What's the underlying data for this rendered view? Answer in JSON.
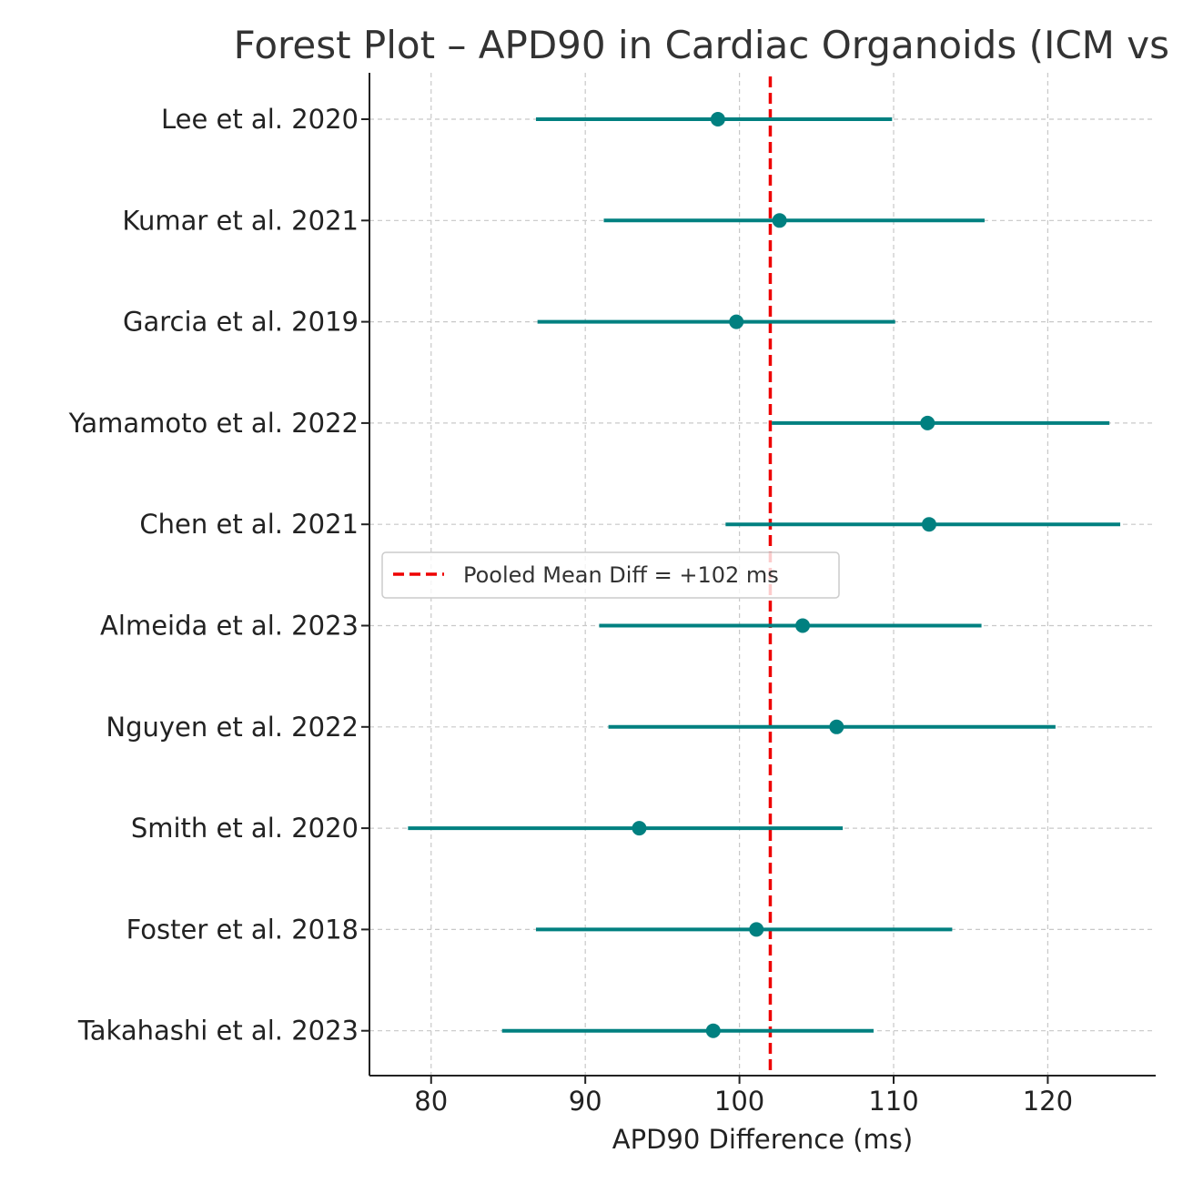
{
  "chart_data": {
    "type": "forest",
    "title": "Forest Plot – APD90 in Cardiac Organoids (ICM vs",
    "xlabel": "APD90 Difference (ms)",
    "ylabel": "",
    "xlim": [
      76,
      127
    ],
    "xticks": [
      80,
      90,
      100,
      110,
      120
    ],
    "grid": true,
    "legend_position": "center-left",
    "legend_label": "Pooled Mean Diff = +102 ms",
    "pooled_mean": 102,
    "studies": [
      {
        "name": "Lee et al. 2020",
        "mean": 98.6,
        "ci_low": 86.8,
        "ci_high": 109.9
      },
      {
        "name": "Kumar et al. 2021",
        "mean": 102.6,
        "ci_low": 91.2,
        "ci_high": 115.9
      },
      {
        "name": "Garcia et al. 2019",
        "mean": 99.8,
        "ci_low": 86.9,
        "ci_high": 110.1
      },
      {
        "name": "Yamamoto et al. 2022",
        "mean": 112.2,
        "ci_low": 102.1,
        "ci_high": 124.0
      },
      {
        "name": "Chen et al. 2021",
        "mean": 112.3,
        "ci_low": 99.1,
        "ci_high": 124.7
      },
      {
        "name": "Almeida et al. 2023",
        "mean": 104.1,
        "ci_low": 90.9,
        "ci_high": 115.7
      },
      {
        "name": "Nguyen et al. 2022",
        "mean": 106.3,
        "ci_low": 91.5,
        "ci_high": 120.5
      },
      {
        "name": "Smith et al. 2020",
        "mean": 93.5,
        "ci_low": 78.5,
        "ci_high": 106.7
      },
      {
        "name": "Foster et al. 2018",
        "mean": 101.1,
        "ci_low": 86.8,
        "ci_high": 113.8
      },
      {
        "name": "Takahashi et al. 2023",
        "mean": 98.3,
        "ci_low": 84.6,
        "ci_high": 108.7
      }
    ],
    "colors": {
      "series": "#008080",
      "pooled": "#ee0000",
      "grid": "#c8c8c8",
      "axis": "#222222"
    }
  }
}
